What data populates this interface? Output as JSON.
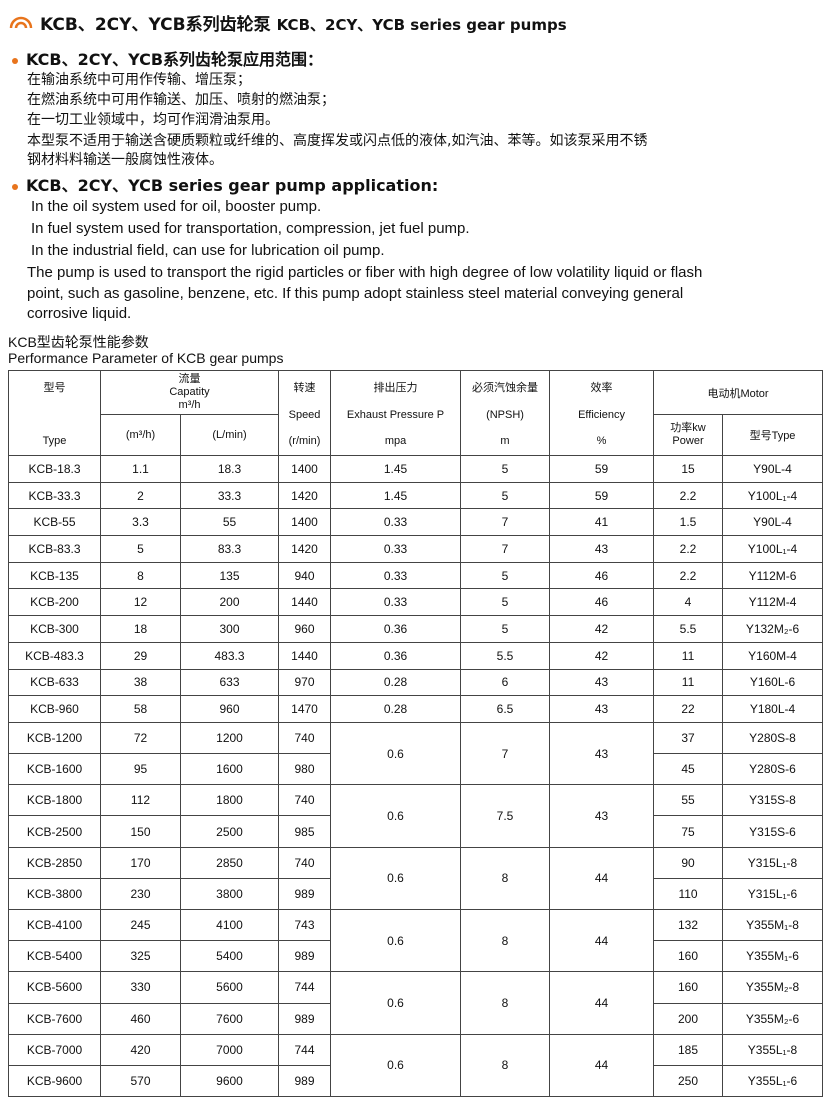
{
  "header": {
    "title": "KCB、2CY、YCB系列齿轮泵",
    "title_en": "KCB、2CY、YCB series gear pumps"
  },
  "sections": [
    {
      "heading": "KCB、2CY、YCB系列齿轮泵应用范围：",
      "lines": [
        "在输油系统中可用作传输、增压泵；",
        "在燃油系统中可用作输送、加压、喷射的燃油泵；",
        "在一切工业领域中，均可作润滑油泵用。",
        "本型泵不适用于输送含硬质颗粒或纤维的、高度挥发或闪点低的液体,如汽油、苯等。如该泵采用不锈",
        "钢材料料输送一般腐蚀性液体。"
      ]
    },
    {
      "heading": "KCB、2CY、YCB series gear pump application:",
      "lines": [
        "In the oil system used for oil, booster pump.",
        "In fuel system used for transportation, compression, jet fuel pump.",
        "In the industrial field, can use for lubrication oil pump.",
        "The pump is used to transport the rigid particles or fiber with high degree of low volatility liquid or flash",
        "point, such as gasoline, benzene, etc. If this pump adopt stainless steel material conveying general",
        "corrosive liquid."
      ]
    }
  ],
  "caption": {
    "cn": "KCB型齿轮泵性能参数",
    "en": "Performance Parameter of KCB gear pumps"
  },
  "table": {
    "header": {
      "type_cn": "型号",
      "type_en": "Type",
      "flow_cn": "流量",
      "flow_en": "Capatity",
      "flow_unit": "m³/h",
      "col_m3h": "(m³/h)",
      "col_lmin": "(L/min)",
      "speed_cn": "转速",
      "speed_en": "Speed",
      "speed_unit": "(r/min)",
      "pressure_cn": "排出压力",
      "pressure_en": "Exhaust Pressure P",
      "pressure_unit": "mpa",
      "npsh_cn": "必须汽蚀余量",
      "npsh_en": "(NPSH)",
      "npsh_unit": "m",
      "eff_cn": "效率",
      "eff_en": "Efficiency",
      "eff_unit": "%",
      "motor": "电动机Motor",
      "power_cn": "功率kw",
      "power_en": "Power",
      "motor_type": "型号Type"
    },
    "rows": [
      [
        "KCB-18.3",
        "1.1",
        "18.3",
        "1400",
        "1.45",
        "5",
        "59",
        "15",
        "Y90L-4"
      ],
      [
        "KCB-33.3",
        "2",
        "33.3",
        "1420",
        "1.45",
        "5",
        "59",
        "2.2",
        "Y100L₁-4"
      ],
      [
        "KCB-55",
        "3.3",
        "55",
        "1400",
        "0.33",
        "7",
        "41",
        "1.5",
        "Y90L-4"
      ],
      [
        "KCB-83.3",
        "5",
        "83.3",
        "1420",
        "0.33",
        "7",
        "43",
        "2.2",
        "Y100L₁-4"
      ],
      [
        "KCB-135",
        "8",
        "135",
        "940",
        "0.33",
        "5",
        "46",
        "2.2",
        "Y112M-6"
      ],
      [
        "KCB-200",
        "12",
        "200",
        "1440",
        "0.33",
        "5",
        "46",
        "4",
        "Y112M-4"
      ],
      [
        "KCB-300",
        "18",
        "300",
        "960",
        "0.36",
        "5",
        "42",
        "5.5",
        "Y132M₂-6"
      ],
      [
        "KCB-483.3",
        "29",
        "483.3",
        "1440",
        "0.36",
        "5.5",
        "42",
        "11",
        "Y160M-4"
      ],
      [
        "KCB-633",
        "38",
        "633",
        "970",
        "0.28",
        "6",
        "43",
        "11",
        "Y160L-6"
      ],
      [
        "KCB-960",
        "58",
        "960",
        "1470",
        "0.28",
        "6.5",
        "43",
        "22",
        "Y180L-4"
      ]
    ],
    "groups": [
      {
        "pressure": "0.6",
        "npsh": "7",
        "efficiency": "43",
        "rows": [
          [
            "KCB-1200",
            "72",
            "1200",
            "740",
            "37",
            "Y280S-8"
          ],
          [
            "KCB-1600",
            "95",
            "1600",
            "980",
            "45",
            "Y280S-6"
          ]
        ]
      },
      {
        "pressure": "0.6",
        "npsh": "7.5",
        "efficiency": "43",
        "rows": [
          [
            "KCB-1800",
            "112",
            "1800",
            "740",
            "55",
            "Y315S-8"
          ],
          [
            "KCB-2500",
            "150",
            "2500",
            "985",
            "75",
            "Y315S-6"
          ]
        ]
      },
      {
        "pressure": "0.6",
        "npsh": "8",
        "efficiency": "44",
        "rows": [
          [
            "KCB-2850",
            "170",
            "2850",
            "740",
            "90",
            "Y315L₁-8"
          ],
          [
            "KCB-3800",
            "230",
            "3800",
            "989",
            "110",
            "Y315L₁-6"
          ]
        ]
      },
      {
        "pressure": "0.6",
        "npsh": "8",
        "efficiency": "44",
        "rows": [
          [
            "KCB-4100",
            "245",
            "4100",
            "743",
            "132",
            "Y355M₁-8"
          ],
          [
            "KCB-5400",
            "325",
            "5400",
            "989",
            "160",
            "Y355M₁-6"
          ]
        ]
      },
      {
        "pressure": "0.6",
        "npsh": "8",
        "efficiency": "44",
        "rows": [
          [
            "KCB-5600",
            "330",
            "5600",
            "744",
            "160",
            "Y355M₂-8"
          ],
          [
            "KCB-7600",
            "460",
            "7600",
            "989",
            "200",
            "Y355M₂-6"
          ]
        ]
      },
      {
        "pressure": "0.6",
        "npsh": "8",
        "efficiency": "44",
        "rows": [
          [
            "KCB-7000",
            "420",
            "7000",
            "744",
            "185",
            "Y355L₁-8"
          ],
          [
            "KCB-9600",
            "570",
            "9600",
            "989",
            "250",
            "Y355L₁-6"
          ]
        ]
      }
    ]
  }
}
